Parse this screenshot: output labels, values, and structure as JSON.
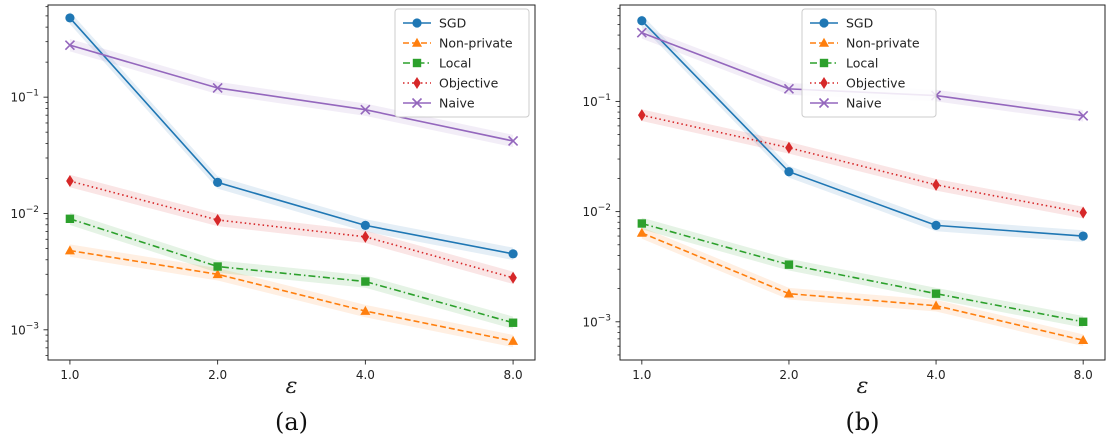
{
  "chart_data": [
    {
      "type": "line",
      "caption": "(a)",
      "xlabel": "ε",
      "x": [
        1.0,
        2.0,
        4.0,
        8.0
      ],
      "x_tick_labels": [
        "1.0",
        "2.0",
        "4.0",
        "8.0"
      ],
      "x_scale": "log",
      "y_scale": "log",
      "ylim": [
        0.00055,
        0.62
      ],
      "y_ticks": [
        {
          "value": 0.001,
          "base": "10",
          "exp": "−3"
        },
        {
          "value": 0.01,
          "base": "10",
          "exp": "−2"
        },
        {
          "value": 0.1,
          "base": "10",
          "exp": "−1"
        }
      ],
      "legend_position": "top-right",
      "series": [
        {
          "name": "SGD",
          "color": "#1f77b4",
          "marker": "circle",
          "dash": "solid",
          "values": [
            0.48,
            0.0185,
            0.0079,
            0.0045
          ]
        },
        {
          "name": "Non-private",
          "color": "#ff7f0e",
          "marker": "triangle",
          "dash": "dashed",
          "values": [
            0.0048,
            0.003,
            0.00145,
            0.0008
          ]
        },
        {
          "name": "Local",
          "color": "#2ca02c",
          "marker": "square",
          "dash": "dashdot",
          "values": [
            0.009,
            0.0035,
            0.0026,
            0.00115
          ]
        },
        {
          "name": "Objective",
          "color": "#d62728",
          "marker": "diamond",
          "dash": "dotted",
          "values": [
            0.019,
            0.0088,
            0.0063,
            0.0028
          ]
        },
        {
          "name": "Naive",
          "color": "#9467bd",
          "marker": "x",
          "dash": "solid",
          "values": [
            0.28,
            0.12,
            0.078,
            0.042
          ]
        }
      ]
    },
    {
      "type": "line",
      "caption": "(b)",
      "xlabel": "ε",
      "x": [
        1.0,
        2.0,
        4.0,
        8.0
      ],
      "x_tick_labels": [
        "1.0",
        "2.0",
        "4.0",
        "8.0"
      ],
      "x_scale": "log",
      "y_scale": "log",
      "ylim": [
        0.00045,
        0.75
      ],
      "y_ticks": [
        {
          "value": 0.001,
          "base": "10",
          "exp": "−3"
        },
        {
          "value": 0.01,
          "base": "10",
          "exp": "−2"
        },
        {
          "value": 0.1,
          "base": "10",
          "exp": "−1"
        }
      ],
      "legend_position": "top-center",
      "series": [
        {
          "name": "SGD",
          "color": "#1f77b4",
          "marker": "circle",
          "dash": "solid",
          "values": [
            0.54,
            0.023,
            0.0075,
            0.006
          ]
        },
        {
          "name": "Non-private",
          "color": "#ff7f0e",
          "marker": "triangle",
          "dash": "dashed",
          "values": [
            0.0064,
            0.0018,
            0.0014,
            0.00068
          ]
        },
        {
          "name": "Local",
          "color": "#2ca02c",
          "marker": "square",
          "dash": "dashdot",
          "values": [
            0.0078,
            0.0033,
            0.0018,
            0.001
          ]
        },
        {
          "name": "Objective",
          "color": "#d62728",
          "marker": "diamond",
          "dash": "dotted",
          "values": [
            0.075,
            0.038,
            0.0175,
            0.0098
          ]
        },
        {
          "name": "Naive",
          "color": "#9467bd",
          "marker": "x",
          "dash": "solid",
          "values": [
            0.42,
            0.13,
            0.113,
            0.074
          ]
        }
      ]
    }
  ]
}
